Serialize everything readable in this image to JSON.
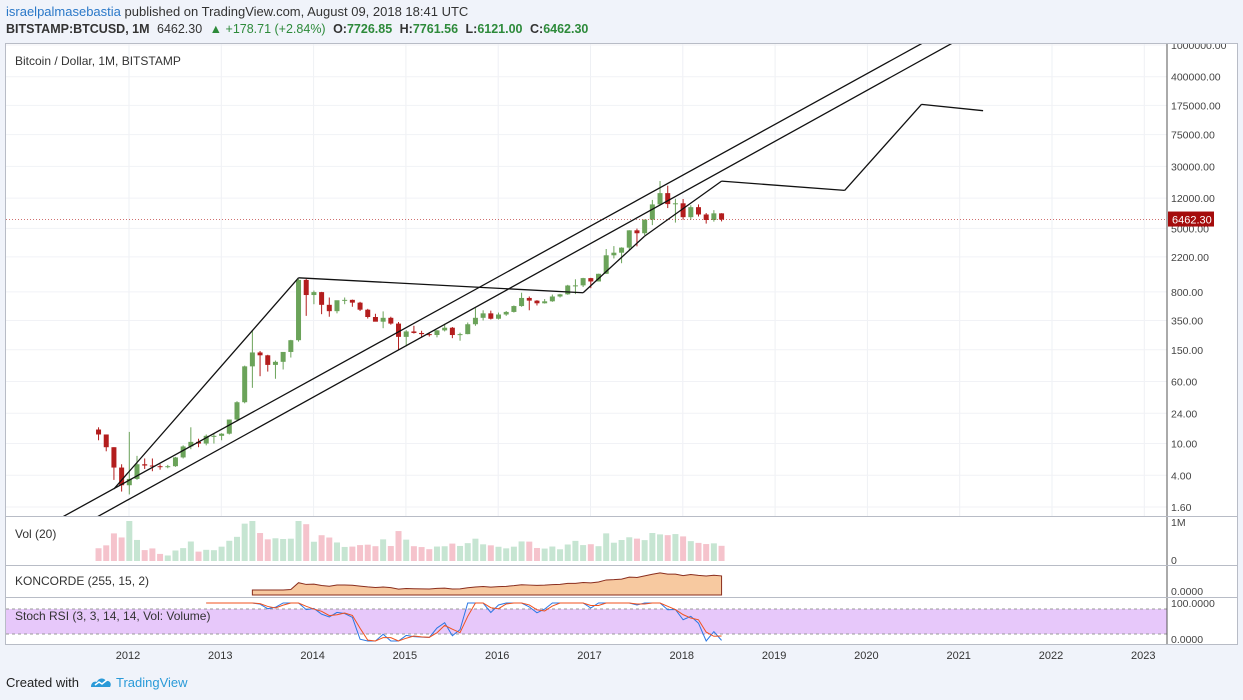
{
  "header": {
    "author": "israelpalmasebastia",
    "published": "published on TradingView.com, August 09, 2018 18:41 UTC",
    "symbol": "BITSTAMP:BTCUSD, 1M",
    "last": "6462.30",
    "change": "▲ +178.71 (+2.84%)",
    "o_label": "O:",
    "o": "7726.85",
    "h_label": "H:",
    "h": "7761.56",
    "l_label": "L:",
    "l": "6121.00",
    "c_label": "C:",
    "c": "6462.30"
  },
  "panes": {
    "main_label": "Bitcoin / Dollar, 1M, BITSTAMP",
    "vol_label": "Vol (20)",
    "koncorde_label": "KONCORDE (255, 15, 2)",
    "stoch_label": "Stoch RSI (3, 3, 14, 14, Vol: Volume)"
  },
  "footer": {
    "created": "Created with",
    "brand": "TradingView"
  },
  "colors": {
    "up": "#6ba35a",
    "down": "#b31d1d",
    "vol_up": "#c6e5d2",
    "vol_down": "#f5c3cc",
    "stoch_band": "#e7c8fa"
  },
  "chart_data": [
    {
      "type": "candlestick",
      "title": "Bitcoin / Dollar, 1M, BITSTAMP",
      "y_scale": "log",
      "y_ticks": [
        1.6,
        4.0,
        10.0,
        24.0,
        60.0,
        150.0,
        350.0,
        800.0,
        2200.0,
        5000.0,
        12000.0,
        30000.0,
        75000.0,
        175000.0,
        400000.0,
        1000000.0
      ],
      "y_tick_labels": [
        "1.60",
        "4.00",
        "10.00",
        "24.00",
        "60.00",
        "150.00",
        "350.00",
        "800.00",
        "2200.00",
        "5000.00",
        "12000.00",
        "30000.00",
        "75000.00",
        "175000.00",
        "400000.00",
        "1000000.00"
      ],
      "x_ticks": [
        "2012",
        "2013",
        "2014",
        "2015",
        "2016",
        "2017",
        "2018",
        "2019",
        "2020",
        "2021",
        "2022",
        "2023"
      ],
      "last_price_label": "6462.30",
      "candles": [
        {
          "o": 15,
          "h": 16,
          "l": 11,
          "c": 13
        },
        {
          "o": 13,
          "h": 13,
          "l": 8,
          "c": 9
        },
        {
          "o": 9,
          "h": 9,
          "l": 3.5,
          "c": 5
        },
        {
          "o": 5,
          "h": 5.5,
          "l": 2.5,
          "c": 3
        },
        {
          "o": 3,
          "h": 14,
          "l": 2.3,
          "c": 3.6
        },
        {
          "o": 3.6,
          "h": 7,
          "l": 3.5,
          "c": 5.5
        },
        {
          "o": 5.5,
          "h": 6.5,
          "l": 4.8,
          "c": 5.3
        },
        {
          "o": 5.3,
          "h": 6.5,
          "l": 4.5,
          "c": 5.2
        },
        {
          "o": 5.2,
          "h": 5.5,
          "l": 4.7,
          "c": 5.1
        },
        {
          "o": 5.1,
          "h": 5.4,
          "l": 4.9,
          "c": 5.2
        },
        {
          "o": 5.2,
          "h": 6.8,
          "l": 5.1,
          "c": 6.7
        },
        {
          "o": 6.7,
          "h": 9.5,
          "l": 6.5,
          "c": 9.2
        },
        {
          "o": 9.2,
          "h": 16,
          "l": 8.5,
          "c": 10.5
        },
        {
          "o": 10.5,
          "h": 11.5,
          "l": 9,
          "c": 10
        },
        {
          "o": 10,
          "h": 13,
          "l": 9.5,
          "c": 12.5
        },
        {
          "o": 12.5,
          "h": 13.5,
          "l": 10,
          "c": 12.5
        },
        {
          "o": 12.5,
          "h": 13.5,
          "l": 11,
          "c": 13.3
        },
        {
          "o": 13.3,
          "h": 20,
          "l": 13,
          "c": 20
        },
        {
          "o": 20,
          "h": 34,
          "l": 19,
          "c": 33
        },
        {
          "o": 33,
          "h": 95,
          "l": 32,
          "c": 93
        },
        {
          "o": 93,
          "h": 266,
          "l": 50,
          "c": 139
        },
        {
          "o": 139,
          "h": 145,
          "l": 70,
          "c": 128
        },
        {
          "o": 128,
          "h": 130,
          "l": 80,
          "c": 97
        },
        {
          "o": 97,
          "h": 110,
          "l": 65,
          "c": 106
        },
        {
          "o": 106,
          "h": 140,
          "l": 85,
          "c": 141
        },
        {
          "o": 141,
          "h": 200,
          "l": 120,
          "c": 198
        },
        {
          "o": 198,
          "h": 1163,
          "l": 190,
          "c": 1130
        },
        {
          "o": 1130,
          "h": 1163,
          "l": 400,
          "c": 730
        },
        {
          "o": 730,
          "h": 830,
          "l": 560,
          "c": 794
        },
        {
          "o": 794,
          "h": 800,
          "l": 420,
          "c": 550
        },
        {
          "o": 550,
          "h": 680,
          "l": 390,
          "c": 458
        },
        {
          "o": 458,
          "h": 620,
          "l": 430,
          "c": 628
        },
        {
          "o": 628,
          "h": 680,
          "l": 560,
          "c": 635
        },
        {
          "o": 635,
          "h": 640,
          "l": 520,
          "c": 586
        },
        {
          "o": 586,
          "h": 600,
          "l": 460,
          "c": 478
        },
        {
          "o": 478,
          "h": 490,
          "l": 370,
          "c": 387
        },
        {
          "o": 387,
          "h": 425,
          "l": 340,
          "c": 338
        },
        {
          "o": 338,
          "h": 455,
          "l": 280,
          "c": 378
        },
        {
          "o": 378,
          "h": 390,
          "l": 310,
          "c": 320
        },
        {
          "o": 320,
          "h": 335,
          "l": 150,
          "c": 218
        },
        {
          "o": 218,
          "h": 265,
          "l": 165,
          "c": 255
        },
        {
          "o": 255,
          "h": 300,
          "l": 240,
          "c": 244
        },
        {
          "o": 244,
          "h": 260,
          "l": 215,
          "c": 236
        },
        {
          "o": 236,
          "h": 245,
          "l": 220,
          "c": 230
        },
        {
          "o": 230,
          "h": 265,
          "l": 215,
          "c": 263
        },
        {
          "o": 263,
          "h": 318,
          "l": 255,
          "c": 284
        },
        {
          "o": 284,
          "h": 290,
          "l": 210,
          "c": 230
        },
        {
          "o": 230,
          "h": 246,
          "l": 195,
          "c": 236
        },
        {
          "o": 236,
          "h": 330,
          "l": 235,
          "c": 314
        },
        {
          "o": 314,
          "h": 500,
          "l": 300,
          "c": 378
        },
        {
          "o": 378,
          "h": 470,
          "l": 350,
          "c": 430
        },
        {
          "o": 430,
          "h": 465,
          "l": 360,
          "c": 368
        },
        {
          "o": 368,
          "h": 440,
          "l": 360,
          "c": 416
        },
        {
          "o": 416,
          "h": 460,
          "l": 400,
          "c": 448
        },
        {
          "o": 448,
          "h": 540,
          "l": 440,
          "c": 531
        },
        {
          "o": 531,
          "h": 780,
          "l": 520,
          "c": 671
        },
        {
          "o": 671,
          "h": 700,
          "l": 470,
          "c": 621
        },
        {
          "o": 621,
          "h": 630,
          "l": 540,
          "c": 575
        },
        {
          "o": 575,
          "h": 650,
          "l": 570,
          "c": 609
        },
        {
          "o": 609,
          "h": 740,
          "l": 600,
          "c": 700
        },
        {
          "o": 700,
          "h": 755,
          "l": 680,
          "c": 745
        },
        {
          "o": 745,
          "h": 980,
          "l": 735,
          "c": 961
        },
        {
          "o": 961,
          "h": 1150,
          "l": 750,
          "c": 965
        },
        {
          "o": 965,
          "h": 1200,
          "l": 920,
          "c": 1190
        },
        {
          "o": 1190,
          "h": 1200,
          "l": 890,
          "c": 1080
        },
        {
          "o": 1080,
          "h": 1350,
          "l": 1080,
          "c": 1348
        },
        {
          "o": 1348,
          "h": 2760,
          "l": 1350,
          "c": 2300
        },
        {
          "o": 2300,
          "h": 3000,
          "l": 2100,
          "c": 2480
        },
        {
          "o": 2480,
          "h": 2900,
          "l": 1830,
          "c": 2870
        },
        {
          "o": 2870,
          "h": 4750,
          "l": 2700,
          "c": 4730
        },
        {
          "o": 4730,
          "h": 4980,
          "l": 2980,
          "c": 4350
        },
        {
          "o": 4350,
          "h": 6470,
          "l": 4100,
          "c": 6450
        },
        {
          "o": 6450,
          "h": 11400,
          "l": 5500,
          "c": 10000
        },
        {
          "o": 10000,
          "h": 19666,
          "l": 10000,
          "c": 13860
        },
        {
          "o": 13860,
          "h": 17180,
          "l": 9000,
          "c": 10100
        },
        {
          "o": 10100,
          "h": 11780,
          "l": 5920,
          "c": 10330
        },
        {
          "o": 10330,
          "h": 11700,
          "l": 6430,
          "c": 6920
        },
        {
          "o": 6920,
          "h": 9760,
          "l": 6430,
          "c": 9240
        },
        {
          "o": 9240,
          "h": 10000,
          "l": 7050,
          "c": 7480
        },
        {
          "o": 7480,
          "h": 7800,
          "l": 5750,
          "c": 6380
        },
        {
          "o": 6380,
          "h": 8480,
          "l": 6080,
          "c": 7730
        },
        {
          "o": 7726.85,
          "h": 7761.56,
          "l": 6121,
          "c": 6462.3
        }
      ]
    },
    {
      "type": "bar",
      "title": "Vol (20)",
      "y_tick_labels": [
        "1M",
        "0"
      ]
    },
    {
      "type": "area",
      "title": "KONCORDE (255, 15, 2)",
      "y_tick_labels": [
        "0.0000"
      ]
    },
    {
      "type": "line",
      "title": "Stoch RSI (3, 3, 14, 14, Vol: Volume)",
      "y_tick_labels": [
        "100.0000",
        "0.0000"
      ],
      "ylim": [
        0,
        100
      ]
    }
  ]
}
